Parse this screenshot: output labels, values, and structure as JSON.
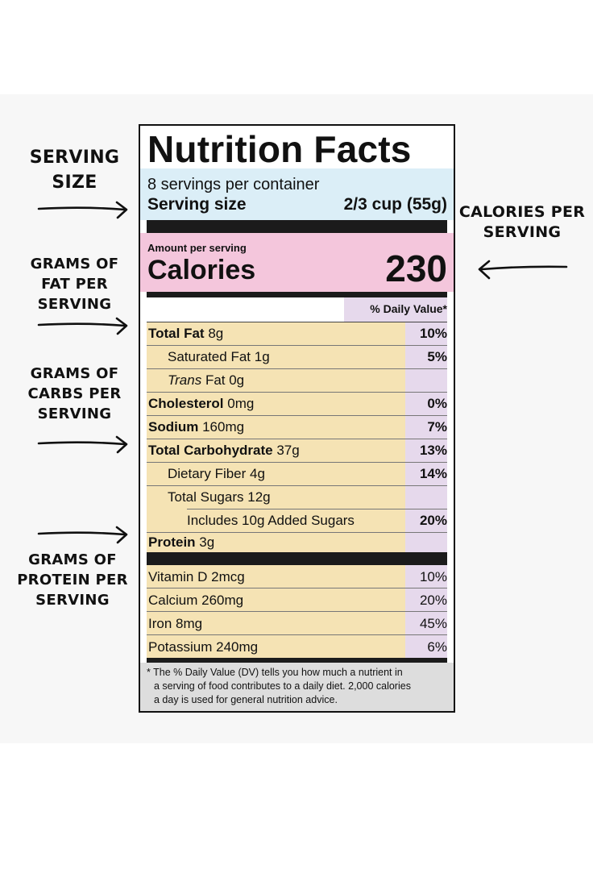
{
  "annotations": {
    "serving_size": [
      "SERVING",
      "SIZE"
    ],
    "calories_per_serving": [
      "CALORIES PER",
      "SERVING"
    ],
    "grams_of_fat": [
      "GRAMS OF",
      "FAT PER",
      "SERVING"
    ],
    "grams_of_carbs": [
      "GRAMS OF",
      "CARBS PER",
      "SERVING"
    ],
    "grams_of_protein": [
      "GRAMS OF",
      "PROTEIN PER",
      "SERVING"
    ]
  },
  "label": {
    "title": "Nutrition Facts",
    "servings_per_container": "8 servings per container",
    "serving_size_label": "Serving size",
    "serving_size_value": "2/3 cup (55g)",
    "amount_per_serving": "Amount per serving",
    "calories_label": "Calories",
    "calories_value": "230",
    "daily_value_header": "% Daily Value*",
    "nutrients": [
      {
        "name": "Total Fat",
        "amount": "8g",
        "dv": "10%"
      },
      {
        "name": "Saturated Fat",
        "amount": "1g",
        "dv": "5%"
      },
      {
        "name": "Trans",
        "amount": "Fat 0g",
        "dv": ""
      },
      {
        "name": "Cholesterol",
        "amount": "0mg",
        "dv": "0%"
      },
      {
        "name": "Sodium",
        "amount": "160mg",
        "dv": "7%"
      },
      {
        "name": "Total Carbohydrate",
        "amount": "37g",
        "dv": "13%"
      },
      {
        "name": "Dietary Fiber",
        "amount": "4g",
        "dv": "14%"
      },
      {
        "name": "Total Sugars",
        "amount": "12g",
        "dv": ""
      },
      {
        "name": "Includes 10g Added Sugars",
        "amount": "",
        "dv": "20%"
      },
      {
        "name": "Protein",
        "amount": "3g",
        "dv": ""
      }
    ],
    "vitamins": [
      {
        "name": "Vitamin D",
        "amount": "2mcg",
        "dv": "10%"
      },
      {
        "name": "Calcium",
        "amount": "260mg",
        "dv": "20%"
      },
      {
        "name": "Iron",
        "amount": "8mg",
        "dv": "45%"
      },
      {
        "name": "Potassium",
        "amount": "240mg",
        "dv": "6%"
      }
    ],
    "footnote": [
      "* The % Daily Value (DV) tells you how much a nutrient in",
      "a serving of food contributes to a daily diet. 2,000 calories",
      "a day is used for general nutrition advice."
    ]
  },
  "colors": {
    "serving_box": "#dbeef7",
    "calories_box": "#f4c6dc",
    "nutrient_box": "#f5e3b4",
    "daily_value_box": "#e6d9ec",
    "footnote_box": "#dddddd"
  }
}
